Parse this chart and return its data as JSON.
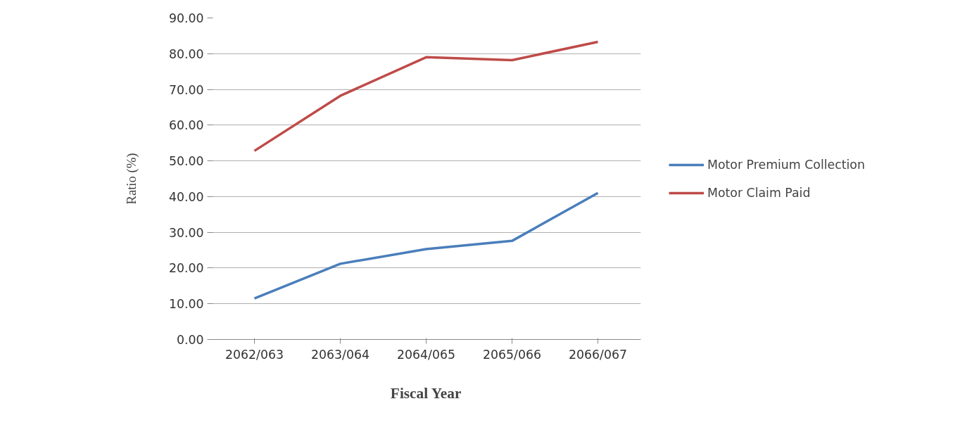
{
  "chart_data": {
    "type": "line",
    "xlabel": "Fiscal Year",
    "ylabel": "Ratio (%)",
    "categories": [
      "2062/063",
      "2063/064",
      "2064/065",
      "2065/066",
      "2066/067"
    ],
    "series": [
      {
        "name": "Motor Premium Collection",
        "color": "#4a7ebb",
        "values": [
          11.5,
          21.2,
          25.3,
          27.6,
          41.0
        ]
      },
      {
        "name": "Motor Claim Paid",
        "color": "#be4b48",
        "values": [
          52.8,
          68.2,
          79.0,
          78.2,
          83.3
        ]
      }
    ],
    "ylim": [
      0,
      90
    ],
    "yticks": [
      {
        "value": 0,
        "label": "0.00"
      },
      {
        "value": 10,
        "label": "10.00"
      },
      {
        "value": 20,
        "label": "20.00"
      },
      {
        "value": 30,
        "label": "30.00"
      },
      {
        "value": 40,
        "label": "40.00"
      },
      {
        "value": 50,
        "label": "50.00"
      },
      {
        "value": 60,
        "label": "60.00"
      },
      {
        "value": 70,
        "label": "70.00"
      },
      {
        "value": 80,
        "label": "80.00"
      },
      {
        "value": 90,
        "label": "90.00"
      }
    ],
    "grid": "y",
    "legend": "right",
    "marker": "none",
    "line_style": "solid"
  }
}
